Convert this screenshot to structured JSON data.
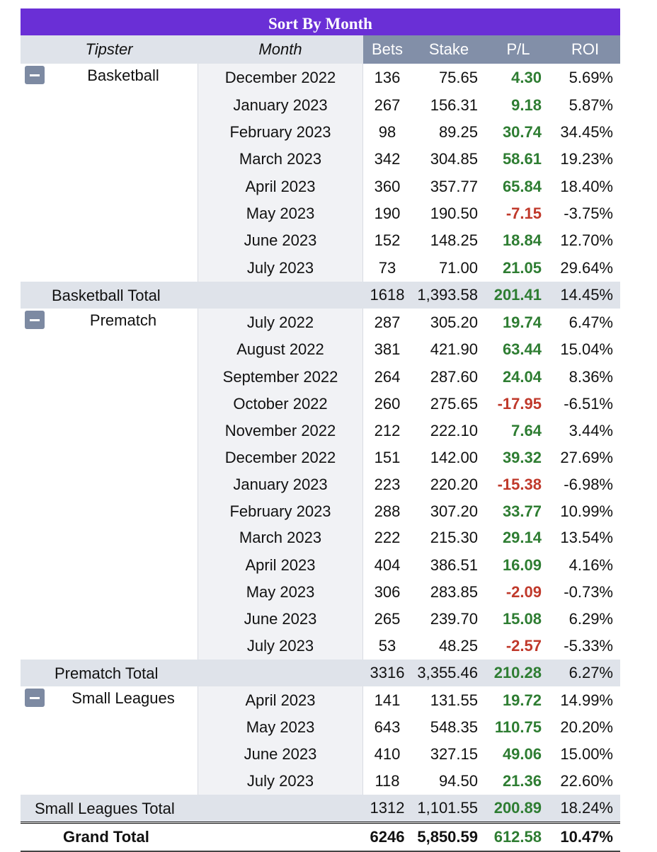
{
  "title": "Sort By Month",
  "headers": {
    "tipster": "Tipster",
    "month": "Month",
    "bets": "Bets",
    "stake": "Stake",
    "pl": "P/L",
    "roi": "ROI"
  },
  "groups": [
    {
      "name": "Basketball",
      "collapse_icon": "minus-icon",
      "rows": [
        {
          "month": "December 2022",
          "bets": "136",
          "stake": "75.65",
          "pl": "4.30",
          "roi": "5.69%"
        },
        {
          "month": "January 2023",
          "bets": "267",
          "stake": "156.31",
          "pl": "9.18",
          "roi": "5.87%"
        },
        {
          "month": "February 2023",
          "bets": "98",
          "stake": "89.25",
          "pl": "30.74",
          "roi": "34.45%"
        },
        {
          "month": "March 2023",
          "bets": "342",
          "stake": "304.85",
          "pl": "58.61",
          "roi": "19.23%"
        },
        {
          "month": "April 2023",
          "bets": "360",
          "stake": "357.77",
          "pl": "65.84",
          "roi": "18.40%"
        },
        {
          "month": "May 2023",
          "bets": "190",
          "stake": "190.50",
          "pl": "-7.15",
          "roi": "-3.75%"
        },
        {
          "month": "June 2023",
          "bets": "152",
          "stake": "148.25",
          "pl": "18.84",
          "roi": "12.70%"
        },
        {
          "month": "July 2023",
          "bets": "73",
          "stake": "71.00",
          "pl": "21.05",
          "roi": "29.64%"
        }
      ],
      "total": {
        "label": "Basketball Total",
        "bets": "1618",
        "stake": "1,393.58",
        "pl": "201.41",
        "roi": "14.45%"
      }
    },
    {
      "name": "Prematch",
      "collapse_icon": "minus-icon",
      "rows": [
        {
          "month": "July 2022",
          "bets": "287",
          "stake": "305.20",
          "pl": "19.74",
          "roi": "6.47%"
        },
        {
          "month": "August 2022",
          "bets": "381",
          "stake": "421.90",
          "pl": "63.44",
          "roi": "15.04%"
        },
        {
          "month": "September 2022",
          "bets": "264",
          "stake": "287.60",
          "pl": "24.04",
          "roi": "8.36%"
        },
        {
          "month": "October 2022",
          "bets": "260",
          "stake": "275.65",
          "pl": "-17.95",
          "roi": "-6.51%"
        },
        {
          "month": "November 2022",
          "bets": "212",
          "stake": "222.10",
          "pl": "7.64",
          "roi": "3.44%"
        },
        {
          "month": "December 2022",
          "bets": "151",
          "stake": "142.00",
          "pl": "39.32",
          "roi": "27.69%"
        },
        {
          "month": "January 2023",
          "bets": "223",
          "stake": "220.20",
          "pl": "-15.38",
          "roi": "-6.98%"
        },
        {
          "month": "February 2023",
          "bets": "288",
          "stake": "307.20",
          "pl": "33.77",
          "roi": "10.99%"
        },
        {
          "month": "March 2023",
          "bets": "222",
          "stake": "215.30",
          "pl": "29.14",
          "roi": "13.54%"
        },
        {
          "month": "April 2023",
          "bets": "404",
          "stake": "386.51",
          "pl": "16.09",
          "roi": "4.16%"
        },
        {
          "month": "May 2023",
          "bets": "306",
          "stake": "283.85",
          "pl": "-2.09",
          "roi": "-0.73%"
        },
        {
          "month": "June 2023",
          "bets": "265",
          "stake": "239.70",
          "pl": "15.08",
          "roi": "6.29%"
        },
        {
          "month": "July 2023",
          "bets": "53",
          "stake": "48.25",
          "pl": "-2.57",
          "roi": "-5.33%"
        }
      ],
      "total": {
        "label": "Prematch Total",
        "bets": "3316",
        "stake": "3,355.46",
        "pl": "210.28",
        "roi": "6.27%"
      }
    },
    {
      "name": "Small Leagues",
      "collapse_icon": "minus-icon",
      "rows": [
        {
          "month": "April 2023",
          "bets": "141",
          "stake": "131.55",
          "pl": "19.72",
          "roi": "14.99%"
        },
        {
          "month": "May 2023",
          "bets": "643",
          "stake": "548.35",
          "pl": "110.75",
          "roi": "20.20%"
        },
        {
          "month": "June 2023",
          "bets": "410",
          "stake": "327.15",
          "pl": "49.06",
          "roi": "15.00%"
        },
        {
          "month": "July 2023",
          "bets": "118",
          "stake": "94.50",
          "pl": "21.36",
          "roi": "22.60%"
        }
      ],
      "total": {
        "label": "Small Leagues Total",
        "bets": "1312",
        "stake": "1,101.55",
        "pl": "200.89",
        "roi": "18.24%"
      }
    }
  ],
  "grand_total": {
    "label": "Grand Total",
    "bets": "6246",
    "stake": "5,850.59",
    "pl": "612.58",
    "roi": "10.47%"
  },
  "colors": {
    "title_bg": "#6a2fd6",
    "header_num_bg": "#828fa8",
    "positive": "#2e7d32",
    "negative": "#c0392b",
    "total_bg": "#dfe3ea"
  }
}
